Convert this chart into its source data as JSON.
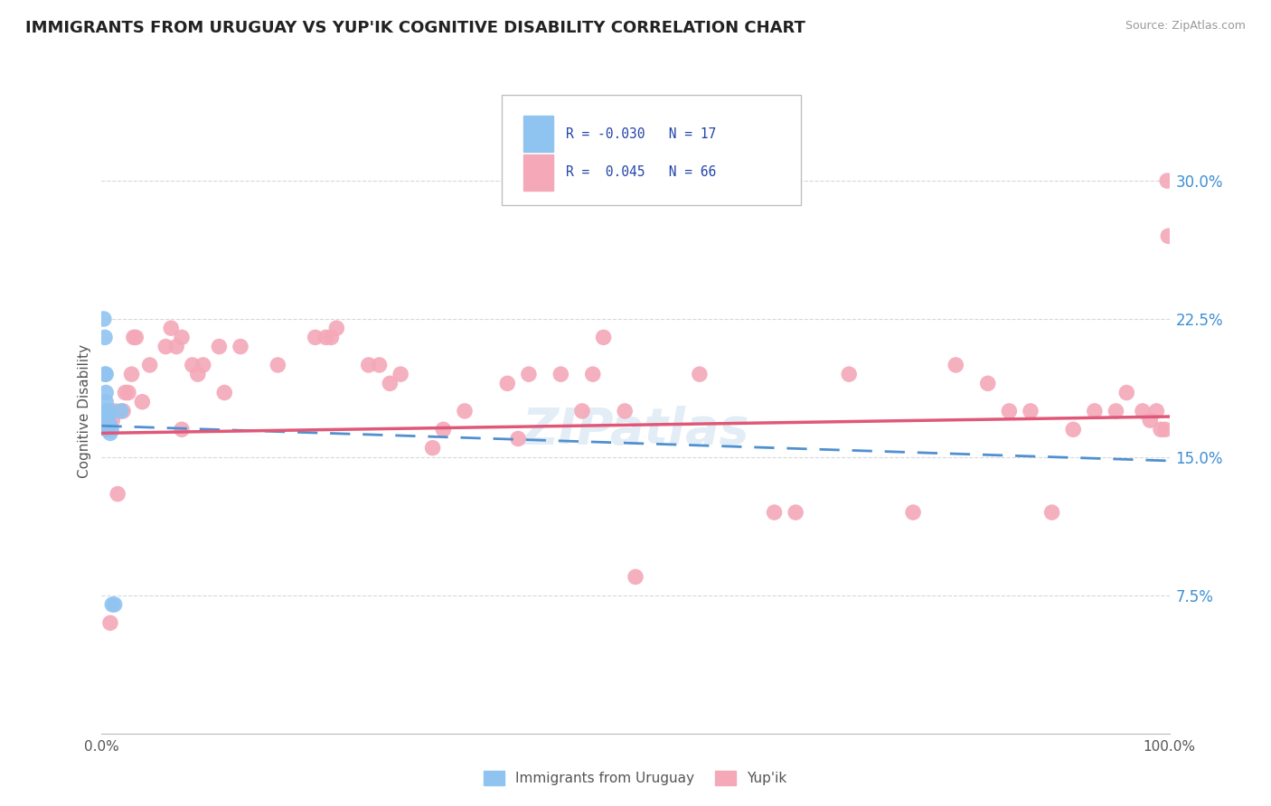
{
  "title": "IMMIGRANTS FROM URUGUAY VS YUP'IK COGNITIVE DISABILITY CORRELATION CHART",
  "source_text": "Source: ZipAtlas.com",
  "ylabel": "Cognitive Disability",
  "watermark": "ZIPatlas",
  "xlim": [
    0.0,
    1.0
  ],
  "ylim": [
    0.0,
    0.35
  ],
  "yticks": [
    0.075,
    0.15,
    0.225,
    0.3
  ],
  "ytick_labels": [
    "7.5%",
    "15.0%",
    "22.5%",
    "30.0%"
  ],
  "grid_color": "#d8d8d8",
  "uruguay_color": "#90c4f0",
  "yupik_color": "#f4a8b8",
  "trend_uruguay_color": "#5090d0",
  "trend_yupik_color": "#e05878",
  "background_color": "#ffffff",
  "uruguay_R": -0.03,
  "uruguay_N": 17,
  "yupik_R": 0.045,
  "yupik_N": 66,
  "uruguay_trend_start_y": 0.167,
  "uruguay_trend_end_y": 0.148,
  "yupik_trend_start_y": 0.163,
  "yupik_trend_end_y": 0.172,
  "uruguay_points_x": [
    0.002,
    0.003,
    0.003,
    0.004,
    0.004,
    0.004,
    0.005,
    0.005,
    0.005,
    0.006,
    0.007,
    0.007,
    0.008,
    0.009,
    0.01,
    0.012,
    0.018
  ],
  "uruguay_points_y": [
    0.225,
    0.195,
    0.215,
    0.195,
    0.185,
    0.18,
    0.175,
    0.17,
    0.165,
    0.17,
    0.175,
    0.168,
    0.163,
    0.165,
    0.07,
    0.07,
    0.175
  ],
  "yupik_points_x": [
    0.005,
    0.008,
    0.01,
    0.012,
    0.015,
    0.02,
    0.022,
    0.025,
    0.028,
    0.03,
    0.032,
    0.038,
    0.045,
    0.06,
    0.065,
    0.07,
    0.075,
    0.075,
    0.085,
    0.09,
    0.095,
    0.11,
    0.115,
    0.13,
    0.165,
    0.2,
    0.21,
    0.215,
    0.22,
    0.25,
    0.26,
    0.27,
    0.28,
    0.31,
    0.32,
    0.34,
    0.38,
    0.39,
    0.4,
    0.43,
    0.45,
    0.46,
    0.47,
    0.49,
    0.5,
    0.56,
    0.63,
    0.65,
    0.7,
    0.76,
    0.8,
    0.83,
    0.85,
    0.87,
    0.89,
    0.91,
    0.93,
    0.95,
    0.96,
    0.975,
    0.982,
    0.988,
    0.992,
    0.996,
    0.998,
    0.999
  ],
  "yupik_points_y": [
    0.165,
    0.06,
    0.17,
    0.175,
    0.13,
    0.175,
    0.185,
    0.185,
    0.195,
    0.215,
    0.215,
    0.18,
    0.2,
    0.21,
    0.22,
    0.21,
    0.215,
    0.165,
    0.2,
    0.195,
    0.2,
    0.21,
    0.185,
    0.21,
    0.2,
    0.215,
    0.215,
    0.215,
    0.22,
    0.2,
    0.2,
    0.19,
    0.195,
    0.155,
    0.165,
    0.175,
    0.19,
    0.16,
    0.195,
    0.195,
    0.175,
    0.195,
    0.215,
    0.175,
    0.085,
    0.195,
    0.12,
    0.12,
    0.195,
    0.12,
    0.2,
    0.19,
    0.175,
    0.175,
    0.12,
    0.165,
    0.175,
    0.175,
    0.185,
    0.175,
    0.17,
    0.175,
    0.165,
    0.165,
    0.3,
    0.27
  ]
}
